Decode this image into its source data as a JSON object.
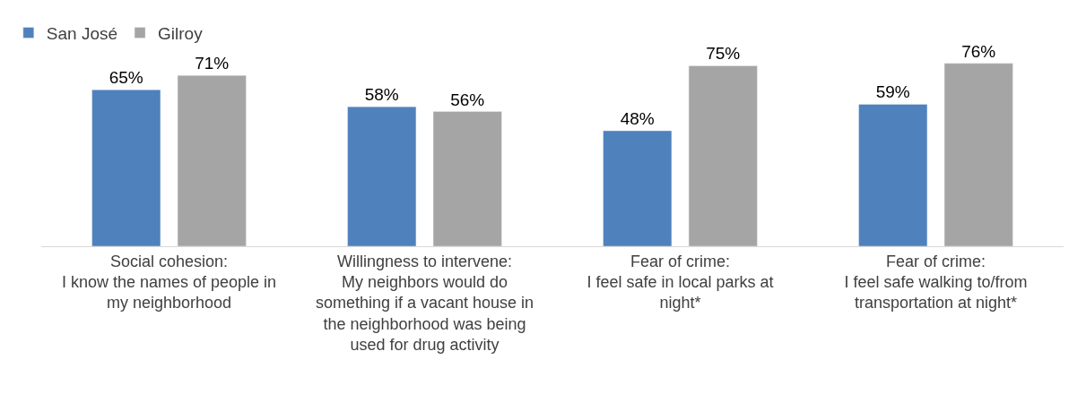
{
  "chart_data": {
    "type": "bar",
    "categories": [
      "Social cohesion:\nI know the names of people in\nmy neighborhood",
      "Willingness to intervene:\nMy neighbors would do\nsomething if a vacant house in\nthe neighborhood was being\nused for drug activity",
      "Fear of crime:\nI feel safe in local parks at\nnight*",
      "Fear of crime:\nI feel safe walking to/from\ntransportation at night*"
    ],
    "series": [
      {
        "name": "San José",
        "color": "#4f81bd",
        "values": [
          65,
          58,
          48,
          59
        ],
        "value_labels": [
          "65%",
          "58%",
          "48%",
          "59%"
        ]
      },
      {
        "name": "Gilroy",
        "color": "#a5a5a5",
        "values": [
          71,
          56,
          75,
          76
        ],
        "value_labels": [
          "71%",
          "56%",
          "75%",
          "76%"
        ]
      }
    ],
    "legend": "top left"
  }
}
